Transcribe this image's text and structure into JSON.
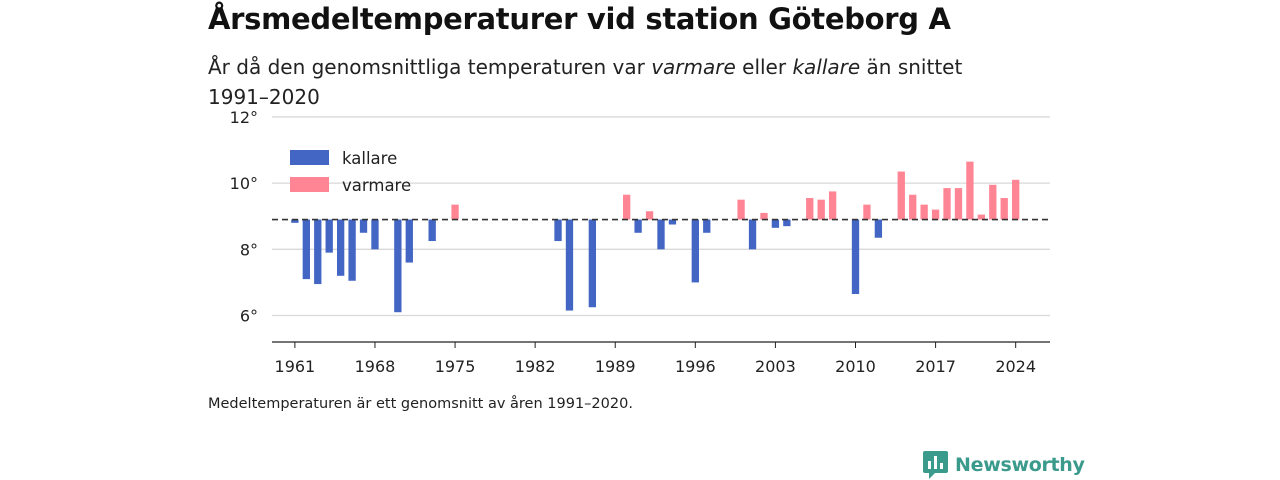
{
  "title": "Årsmedeltemperaturer vid station Göteborg A",
  "subtitle": {
    "part1": "År då den genomsnittliga temperaturen var ",
    "em1": "varmare",
    "part2": " eller ",
    "em2": "kallare",
    "part3": " än snittet 1991–2020"
  },
  "footnote": "Medeltemperaturen är ett genomsnitt av åren 1991–2020.",
  "brand": "Newsworthy",
  "colors": {
    "kallare": "#4366c4",
    "varmare": "#ff8595",
    "brand": "#3a9a8c"
  },
  "chart_data": {
    "type": "bar",
    "baseline": 8.9,
    "baseline_style": "dashed",
    "ylim": [
      5.2,
      12.3
    ],
    "y_ticks": [
      6,
      8,
      10,
      12
    ],
    "y_tick_labels": [
      "6°",
      "8°",
      "10°",
      "12°"
    ],
    "x_ticks": [
      1961,
      1968,
      1975,
      1982,
      1989,
      1996,
      2003,
      2010,
      2017,
      2024
    ],
    "x_tick_labels": [
      "1961",
      "1968",
      "1975",
      "1982",
      "1989",
      "1996",
      "2003",
      "2010",
      "2017",
      "2024"
    ],
    "xlim": [
      1959,
      2027
    ],
    "grid": true,
    "legend_position": "top-left",
    "series": [
      {
        "name": "kallare",
        "color": "#4366c4",
        "points": [
          [
            1961,
            8.8
          ],
          [
            1962,
            7.1
          ],
          [
            1963,
            6.95
          ],
          [
            1964,
            7.9
          ],
          [
            1965,
            7.2
          ],
          [
            1966,
            7.05
          ],
          [
            1967,
            8.5
          ],
          [
            1968,
            8.0
          ],
          [
            1970,
            6.1
          ],
          [
            1971,
            7.6
          ],
          [
            1973,
            8.25
          ],
          [
            1984,
            8.25
          ],
          [
            1985,
            6.15
          ],
          [
            1987,
            6.25
          ],
          [
            1991,
            8.5
          ],
          [
            1993,
            8.0
          ],
          [
            1994,
            8.75
          ],
          [
            1996,
            7.0
          ],
          [
            1997,
            8.5
          ],
          [
            2001,
            8.0
          ],
          [
            2003,
            8.65
          ],
          [
            2004,
            8.7
          ],
          [
            2010,
            6.65
          ],
          [
            2012,
            8.35
          ]
        ]
      },
      {
        "name": "varmare",
        "color": "#ff8595",
        "points": [
          [
            1975,
            9.35
          ],
          [
            1990,
            9.65
          ],
          [
            1992,
            9.15
          ],
          [
            2000,
            9.5
          ],
          [
            2002,
            9.1
          ],
          [
            2006,
            9.55
          ],
          [
            2007,
            9.5
          ],
          [
            2008,
            9.75
          ],
          [
            2011,
            9.35
          ],
          [
            2014,
            10.35
          ],
          [
            2015,
            9.65
          ],
          [
            2016,
            9.35
          ],
          [
            2017,
            9.2
          ],
          [
            2018,
            9.85
          ],
          [
            2019,
            9.85
          ],
          [
            2020,
            10.65
          ],
          [
            2021,
            9.05
          ],
          [
            2022,
            9.95
          ],
          [
            2023,
            9.55
          ],
          [
            2024,
            10.1
          ]
        ]
      }
    ]
  }
}
